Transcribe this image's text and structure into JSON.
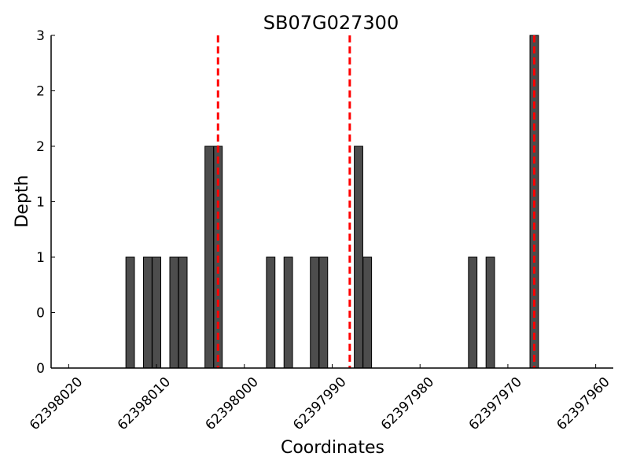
{
  "chart_data": {
    "type": "bar",
    "title": "SB07G027300",
    "xlabel": "Coordinates",
    "ylabel": "Depth",
    "x_axis_reversed": true,
    "xlim": [
      62398022,
      62397958
    ],
    "ylim": [
      0,
      3
    ],
    "x_ticks": [
      62398020,
      62398010,
      62398000,
      62397990,
      62397980,
      62397970,
      62397960
    ],
    "x_tick_labels": [
      "62398020",
      "62398010",
      "62398000",
      "62397990",
      "62397980",
      "62397970",
      "62397960"
    ],
    "y_ticks": [
      0,
      0.5,
      1,
      1.5,
      2,
      2.5,
      3
    ],
    "y_tick_labels": [
      "0",
      "0",
      "1",
      "1",
      "2",
      "2",
      "3"
    ],
    "bar_color": "#4d4d4d",
    "bar_edge_color": "#000000",
    "bar_width": 1,
    "bars": [
      {
        "x": 62398013,
        "depth": 1
      },
      {
        "x": 62398011,
        "depth": 1
      },
      {
        "x": 62398010,
        "depth": 1
      },
      {
        "x": 62398008,
        "depth": 1
      },
      {
        "x": 62398007,
        "depth": 1
      },
      {
        "x": 62398004,
        "depth": 2
      },
      {
        "x": 62398003,
        "depth": 2
      },
      {
        "x": 62397997,
        "depth": 1
      },
      {
        "x": 62397995,
        "depth": 1
      },
      {
        "x": 62397992,
        "depth": 1
      },
      {
        "x": 62397991,
        "depth": 1
      },
      {
        "x": 62397987,
        "depth": 2
      },
      {
        "x": 62397986,
        "depth": 1
      },
      {
        "x": 62397974,
        "depth": 1
      },
      {
        "x": 62397972,
        "depth": 1
      },
      {
        "x": 62397967,
        "depth": 3
      }
    ],
    "reference_lines": {
      "color": "#ff0000",
      "style": "dashed",
      "x": [
        62398003,
        62397988,
        62397967
      ]
    },
    "grid": false,
    "legend": "none"
  }
}
